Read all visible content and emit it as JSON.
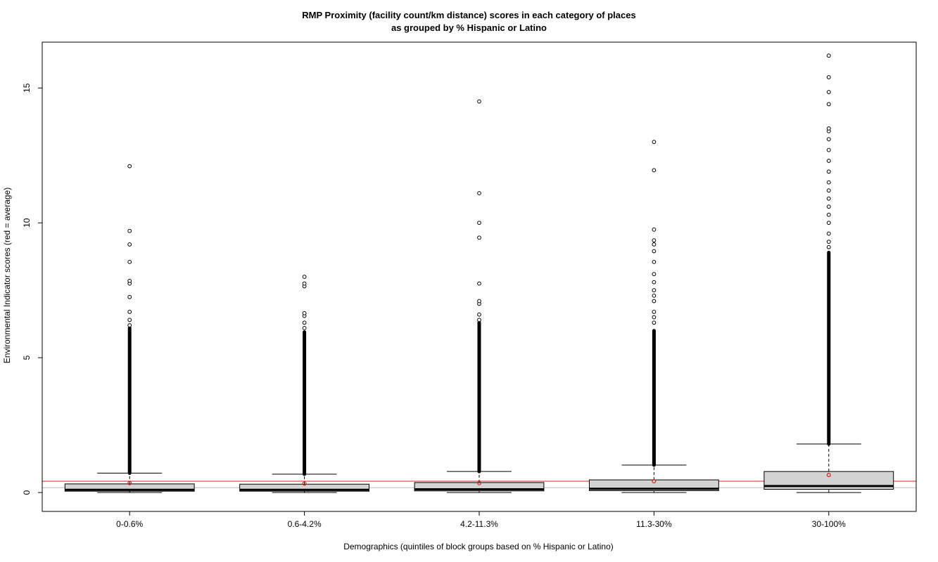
{
  "chart_data": {
    "type": "boxplot",
    "title_line1": "RMP Proximity (facility count/km distance) scores in each category of places",
    "title_line2": "as grouped by % Hispanic or Latino",
    "xlabel": "Demographics (quintiles of block groups based on % Hispanic or Latino)",
    "ylabel": "Environmental Indicator scores (red = average)",
    "ylim": [
      -0.7,
      16.7
    ],
    "yticks": [
      0,
      5,
      10,
      15
    ],
    "overall_average": 0.42,
    "reference_line": 0.18,
    "colors": {
      "box_fill": "#d3d3d3",
      "average": "#d92020",
      "reference": "#bbbbbb"
    },
    "categories": [
      "0-0.6%",
      "0.6-4.2%",
      "4.2-11.3%",
      "11.3-30%",
      "30-100%"
    ],
    "boxes": [
      {
        "min": 0,
        "q1": 0.05,
        "median": 0.1,
        "q3": 0.32,
        "whisker_high": 0.72,
        "mean": 0.35,
        "dense_outliers": [
          0.72,
          6.1
        ],
        "outliers": [
          6.2,
          6.4,
          6.7,
          7.25,
          7.75,
          7.85,
          8.55,
          9.2,
          9.7,
          12.1
        ]
      },
      {
        "min": 0,
        "q1": 0.05,
        "median": 0.1,
        "q3": 0.31,
        "whisker_high": 0.68,
        "mean": 0.33,
        "dense_outliers": [
          0.68,
          5.95
        ],
        "outliers": [
          6.1,
          6.3,
          6.55,
          6.65,
          7.65,
          7.75,
          8.0
        ]
      },
      {
        "min": 0,
        "q1": 0.06,
        "median": 0.12,
        "q3": 0.37,
        "whisker_high": 0.78,
        "mean": 0.35,
        "dense_outliers": [
          0.78,
          6.3
        ],
        "outliers": [
          6.4,
          6.6,
          7.0,
          7.1,
          7.75,
          9.45,
          10.0,
          11.1,
          14.5
        ]
      },
      {
        "min": 0,
        "q1": 0.07,
        "median": 0.14,
        "q3": 0.47,
        "whisker_high": 1.02,
        "mean": 0.42,
        "dense_outliers": [
          1.02,
          6.0
        ],
        "outliers": [
          6.3,
          6.5,
          6.7,
          7.1,
          7.3,
          7.5,
          7.8,
          8.1,
          8.55,
          8.95,
          9.2,
          9.35,
          9.75,
          11.95,
          13.0
        ]
      },
      {
        "min": 0,
        "q1": 0.12,
        "median": 0.24,
        "q3": 0.78,
        "whisker_high": 1.8,
        "mean": 0.65,
        "dense_outliers": [
          1.8,
          8.9
        ],
        "outliers": [
          9.1,
          9.3,
          9.6,
          10.0,
          10.3,
          10.6,
          10.9,
          11.2,
          11.5,
          11.9,
          12.3,
          12.7,
          13.1,
          13.4,
          13.5,
          14.4,
          14.85,
          15.4,
          16.2
        ]
      }
    ]
  }
}
